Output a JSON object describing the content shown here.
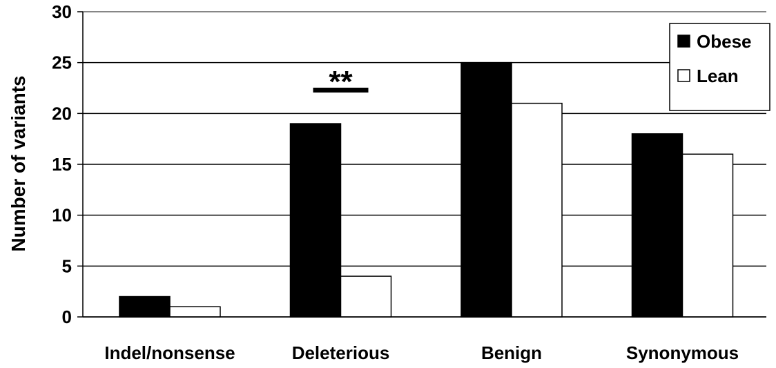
{
  "chart_data": {
    "type": "bar",
    "title": "",
    "xlabel": "",
    "ylabel": "Number of variants",
    "ylim": [
      0,
      30
    ],
    "yticks": [
      0,
      5,
      10,
      15,
      20,
      25,
      30
    ],
    "grid": "horizontal",
    "legend_position": "top-right",
    "categories": [
      "Indel/nonsense",
      "Deleterious",
      "Benign",
      "Synonymous"
    ],
    "series": [
      {
        "name": "Obese",
        "values": [
          2,
          19,
          25,
          18
        ],
        "color": "#000000"
      },
      {
        "name": "Lean",
        "values": [
          1,
          4,
          21,
          16
        ],
        "color": "#ffffff"
      }
    ],
    "annotations": [
      {
        "text": "**",
        "category": "Deleterious"
      }
    ]
  }
}
